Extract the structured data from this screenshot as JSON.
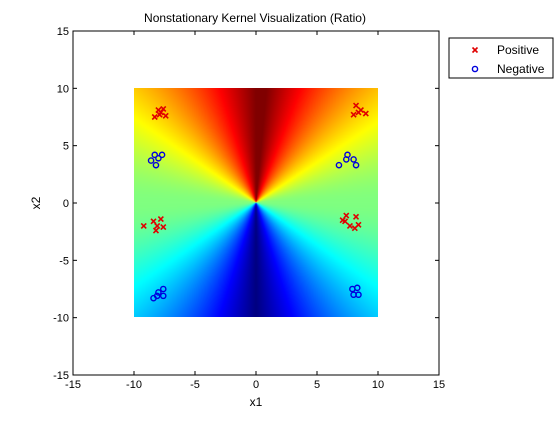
{
  "chart_data": {
    "type": "scatter",
    "title": "Nonstationary Kernel Visualization (Ratio)",
    "xlabel": "x1",
    "ylabel": "x2",
    "xlim": [
      -15,
      15
    ],
    "ylim": [
      -15,
      15
    ],
    "xticks": [
      -15,
      -10,
      -5,
      0,
      5,
      10,
      15
    ],
    "yticks": [
      -15,
      -10,
      -5,
      0,
      5,
      10,
      15
    ],
    "grid": false,
    "legend_position": "top-right",
    "heatmap": {
      "xrange": [
        -10,
        10
      ],
      "yrange": [
        -10,
        10
      ],
      "colormap": "jet"
    },
    "series": [
      {
        "name": "Positive",
        "marker": "x",
        "color": "#e00000",
        "points": [
          [
            -8.3,
            7.5
          ],
          [
            -8.0,
            8.1
          ],
          [
            -7.8,
            7.9
          ],
          [
            -7.6,
            8.2
          ],
          [
            -7.4,
            7.6
          ],
          [
            -7.9,
            7.7
          ],
          [
            8.0,
            7.7
          ],
          [
            8.2,
            8.5
          ],
          [
            8.6,
            8.1
          ],
          [
            9.0,
            7.8
          ],
          [
            8.4,
            7.9
          ],
          [
            -9.2,
            -2.0
          ],
          [
            -8.4,
            -1.6
          ],
          [
            -8.1,
            -2.0
          ],
          [
            -7.8,
            -1.4
          ],
          [
            -7.6,
            -2.1
          ],
          [
            -8.2,
            -2.4
          ],
          [
            7.1,
            -1.5
          ],
          [
            7.4,
            -1.1
          ],
          [
            7.7,
            -2.0
          ],
          [
            8.1,
            -2.2
          ],
          [
            8.2,
            -1.2
          ],
          [
            8.4,
            -1.9
          ],
          [
            7.3,
            -1.6
          ]
        ]
      },
      {
        "name": "Negative",
        "marker": "o",
        "color": "#0000dd",
        "points": [
          [
            -8.6,
            3.7
          ],
          [
            -8.3,
            4.2
          ],
          [
            -8.0,
            3.9
          ],
          [
            -7.7,
            4.2
          ],
          [
            -8.2,
            3.3
          ],
          [
            6.8,
            3.3
          ],
          [
            7.4,
            3.8
          ],
          [
            7.5,
            4.2
          ],
          [
            8.0,
            3.8
          ],
          [
            8.2,
            3.3
          ],
          [
            -8.4,
            -8.3
          ],
          [
            -8.0,
            -7.8
          ],
          [
            -7.6,
            -8.1
          ],
          [
            -7.6,
            -7.5
          ],
          [
            -8.1,
            -8.1
          ],
          [
            7.9,
            -7.5
          ],
          [
            8.0,
            -8.0
          ],
          [
            8.3,
            -7.4
          ],
          [
            8.4,
            -8.0
          ]
        ]
      }
    ]
  }
}
